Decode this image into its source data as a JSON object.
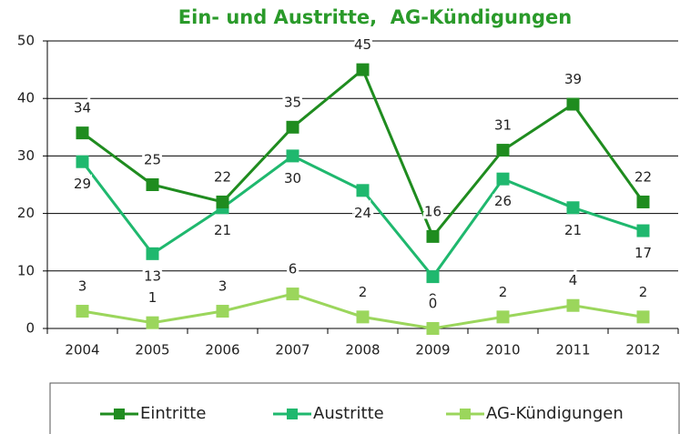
{
  "chart_data": {
    "type": "line",
    "title": "Ein- und Austritte,  AG-Kündigungen",
    "categories": [
      "2004",
      "2005",
      "2006",
      "2007",
      "2008",
      "2009",
      "2010",
      "2011",
      "2012"
    ],
    "series": [
      {
        "name": "Eintritte",
        "color": "#1f8c1f",
        "values": [
          34,
          25,
          22,
          35,
          45,
          16,
          31,
          39,
          22
        ]
      },
      {
        "name": "Austritte",
        "color": "#1fb86e",
        "values": [
          29,
          13,
          21,
          30,
          24,
          9,
          26,
          21,
          17
        ]
      },
      {
        "name": "AG-Kündigungen",
        "color": "#9bd65c",
        "values": [
          3,
          1,
          3,
          6,
          2,
          0,
          2,
          4,
          2
        ]
      }
    ],
    "ylim": [
      0,
      50
    ],
    "yticks": [
      0,
      10,
      20,
      30,
      40,
      50
    ],
    "grid": true,
    "legend": "bottom"
  }
}
